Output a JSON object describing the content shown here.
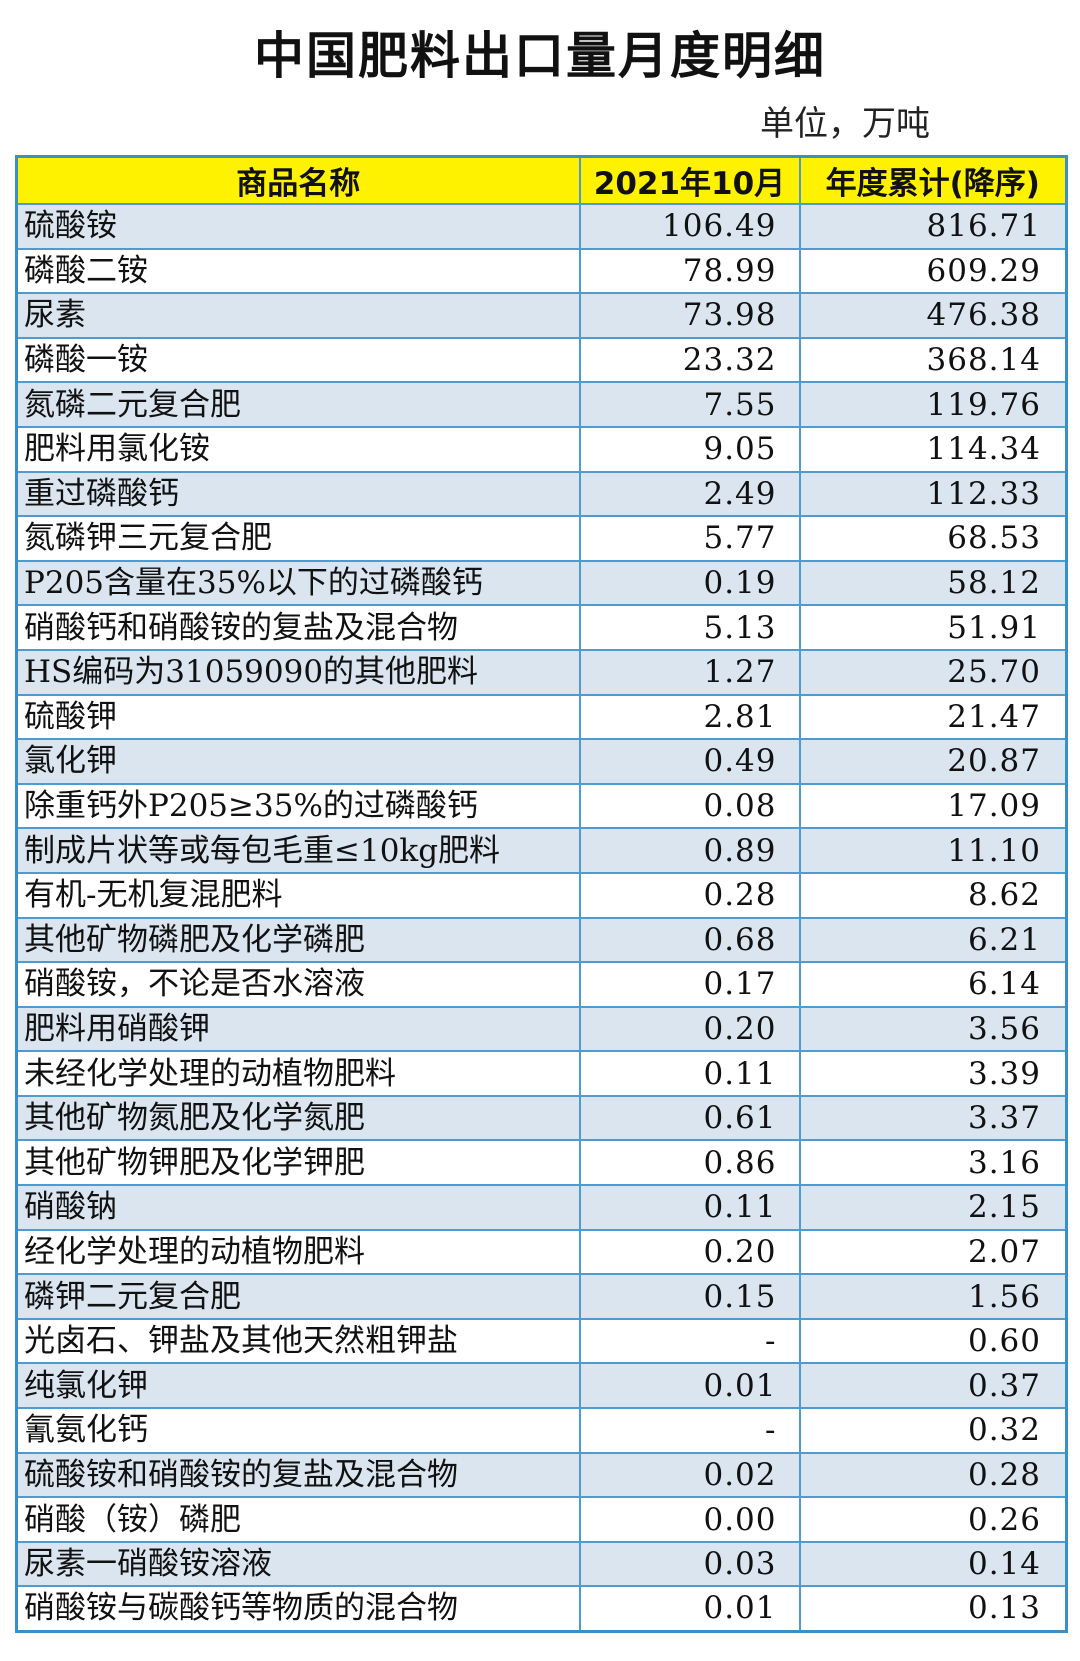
{
  "title": "中国肥料出口量月度明细",
  "unit": "单位，万吨",
  "table": {
    "headers": [
      "商品名称",
      "2021年10月",
      "年度累计(降序)"
    ],
    "rows": [
      {
        "name": "硫酸铵",
        "month": "106.49",
        "ytd": "816.71"
      },
      {
        "name": "磷酸二铵",
        "month": "78.99",
        "ytd": "609.29"
      },
      {
        "name": "尿素",
        "month": "73.98",
        "ytd": "476.38"
      },
      {
        "name": "磷酸一铵",
        "month": "23.32",
        "ytd": "368.14"
      },
      {
        "name": "氮磷二元复合肥",
        "month": "7.55",
        "ytd": "119.76"
      },
      {
        "name": "肥料用氯化铵",
        "month": "9.05",
        "ytd": "114.34"
      },
      {
        "name": "重过磷酸钙",
        "month": "2.49",
        "ytd": "112.33"
      },
      {
        "name": "氮磷钾三元复合肥",
        "month": "5.77",
        "ytd": "68.53"
      },
      {
        "name": "P205含量在35%以下的过磷酸钙",
        "month": "0.19",
        "ytd": "58.12"
      },
      {
        "name": "硝酸钙和硝酸铵的复盐及混合物",
        "month": "5.13",
        "ytd": "51.91"
      },
      {
        "name": "HS编码为31059090的其他肥料",
        "month": "1.27",
        "ytd": "25.70"
      },
      {
        "name": "硫酸钾",
        "month": "2.81",
        "ytd": "21.47"
      },
      {
        "name": "氯化钾",
        "month": "0.49",
        "ytd": "20.87"
      },
      {
        "name": "除重钙外P205≥35%的过磷酸钙",
        "month": "0.08",
        "ytd": "17.09"
      },
      {
        "name": "制成片状等或每包毛重≤10kg肥料",
        "month": "0.89",
        "ytd": "11.10"
      },
      {
        "name": "有机-无机复混肥料",
        "month": "0.28",
        "ytd": "8.62"
      },
      {
        "name": "其他矿物磷肥及化学磷肥",
        "month": "0.68",
        "ytd": "6.21"
      },
      {
        "name": "硝酸铵，不论是否水溶液",
        "month": "0.17",
        "ytd": "6.14"
      },
      {
        "name": "肥料用硝酸钾",
        "month": "0.20",
        "ytd": "3.56"
      },
      {
        "name": "未经化学处理的动植物肥料",
        "month": "0.11",
        "ytd": "3.39"
      },
      {
        "name": "其他矿物氮肥及化学氮肥",
        "month": "0.61",
        "ytd": "3.37"
      },
      {
        "name": "其他矿物钾肥及化学钾肥",
        "month": "0.86",
        "ytd": "3.16"
      },
      {
        "name": "硝酸钠",
        "month": "0.11",
        "ytd": "2.15"
      },
      {
        "name": "经化学处理的动植物肥料",
        "month": "0.20",
        "ytd": "2.07"
      },
      {
        "name": "磷钾二元复合肥",
        "month": "0.15",
        "ytd": "1.56"
      },
      {
        "name": "光卤石、钾盐及其他天然粗钾盐",
        "month": "-",
        "ytd": "0.60"
      },
      {
        "name": "纯氯化钾",
        "month": "0.01",
        "ytd": "0.37"
      },
      {
        "name": "氰氨化钙",
        "month": "-",
        "ytd": "0.32"
      },
      {
        "name": "硫酸铵和硝酸铵的复盐及混合物",
        "month": "0.02",
        "ytd": "0.28"
      },
      {
        "name": "硝酸（铵）磷肥",
        "month": "0.00",
        "ytd": "0.26"
      },
      {
        "name": "尿素一硝酸铵溶液",
        "month": "0.03",
        "ytd": "0.14"
      },
      {
        "name": "硝酸铵与碳酸钙等物质的混合物",
        "month": "0.01",
        "ytd": "0.13"
      }
    ]
  },
  "colors": {
    "header_bg": "#fff200",
    "row_shade": "#dbe5f0",
    "row_plain": "#ffffff",
    "border": "#4d9bd0"
  }
}
